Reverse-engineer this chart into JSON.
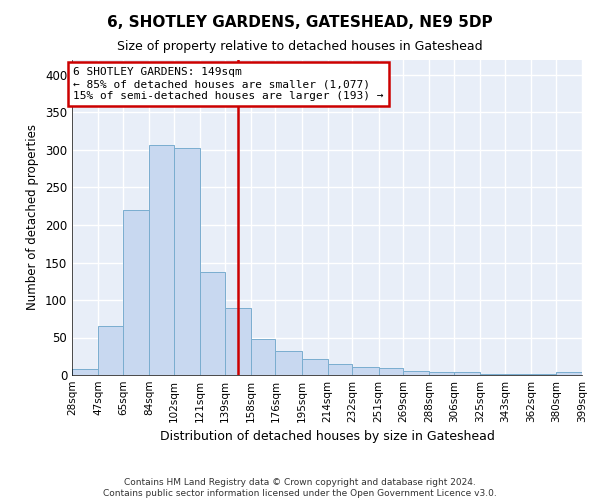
{
  "title": "6, SHOTLEY GARDENS, GATESHEAD, NE9 5DP",
  "subtitle": "Size of property relative to detached houses in Gateshead",
  "xlabel": "Distribution of detached houses by size in Gateshead",
  "ylabel": "Number of detached properties",
  "annotation_title": "6 SHOTLEY GARDENS: 149sqm",
  "annotation_line1": "← 85% of detached houses are smaller (1,077)",
  "annotation_line2": "15% of semi-detached houses are larger (193) →",
  "marker_value": 149,
  "bar_edges": [
    28,
    47,
    65,
    84,
    102,
    121,
    139,
    158,
    176,
    195,
    214,
    232,
    251,
    269,
    288,
    306,
    325,
    343,
    362,
    380,
    399
  ],
  "bar_heights": [
    8,
    65,
    220,
    307,
    303,
    137,
    90,
    48,
    32,
    22,
    15,
    11,
    10,
    5,
    4,
    4,
    2,
    2,
    2,
    4
  ],
  "bar_color": "#c8d8f0",
  "bar_edge_color": "#7aadcf",
  "marker_color": "#cc0000",
  "annotation_box_color": "#cc0000",
  "background_color": "#e8eef8",
  "ylim": [
    0,
    420
  ],
  "yticks": [
    0,
    50,
    100,
    150,
    200,
    250,
    300,
    350,
    400
  ],
  "footer_line1": "Contains HM Land Registry data © Crown copyright and database right 2024.",
  "footer_line2": "Contains public sector information licensed under the Open Government Licence v3.0."
}
